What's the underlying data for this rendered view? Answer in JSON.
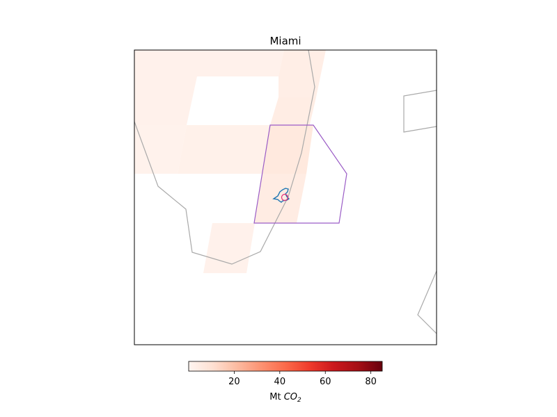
{
  "map": {
    "title": "Miami",
    "colorbar": {
      "colormap": "Reds",
      "min": 0,
      "max": 85,
      "ticks": [
        20,
        40,
        60,
        80
      ],
      "label_main": "Mt ",
      "label_sub_base": "CO",
      "label_sub_index": "2"
    },
    "colors": {
      "coastline": "#a9a9a9",
      "region_outline": "#9a5cc6",
      "urban_outline": "#1f77b4",
      "marker": "#e0307a"
    }
  }
}
